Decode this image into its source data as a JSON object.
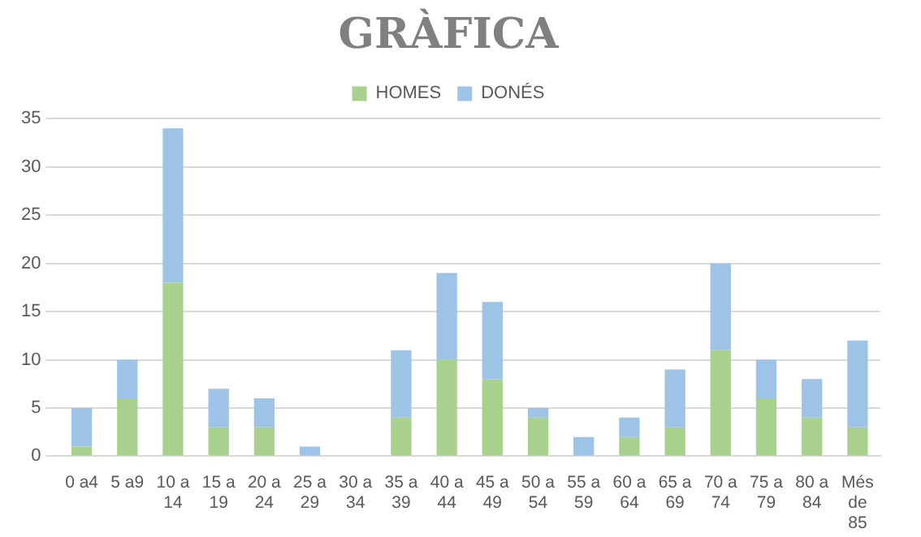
{
  "chart_data": {
    "type": "bar",
    "title": "GRÀFICA",
    "stacked": true,
    "categories": [
      "0 a4",
      "5 a9",
      "10 a 14",
      "15 a 19",
      "20 a 24",
      "25 a 29",
      "30 a 34",
      "35 a 39",
      "40 a 44",
      "45 a 49",
      "50 a 54",
      "55 a 59",
      "60 a 64",
      "65 a 69",
      "70 a 74",
      "75 a 79",
      "80 a 84",
      "Més de 85"
    ],
    "series": [
      {
        "name": "HOMES",
        "color": "#a9d18e",
        "values": [
          1,
          6,
          18,
          3,
          3,
          0,
          0,
          4,
          10,
          8,
          4,
          0,
          2,
          3,
          11,
          6,
          4,
          3
        ]
      },
      {
        "name": "DONÉS",
        "color": "#9dc3e6",
        "values": [
          4,
          4,
          16,
          4,
          3,
          1,
          0,
          7,
          9,
          8,
          1,
          2,
          2,
          6,
          9,
          4,
          4,
          9
        ]
      }
    ],
    "ylim": [
      0,
      35
    ],
    "yticks": [
      0,
      5,
      10,
      15,
      20,
      25,
      30,
      35
    ],
    "grid": "y",
    "legend": "top"
  }
}
